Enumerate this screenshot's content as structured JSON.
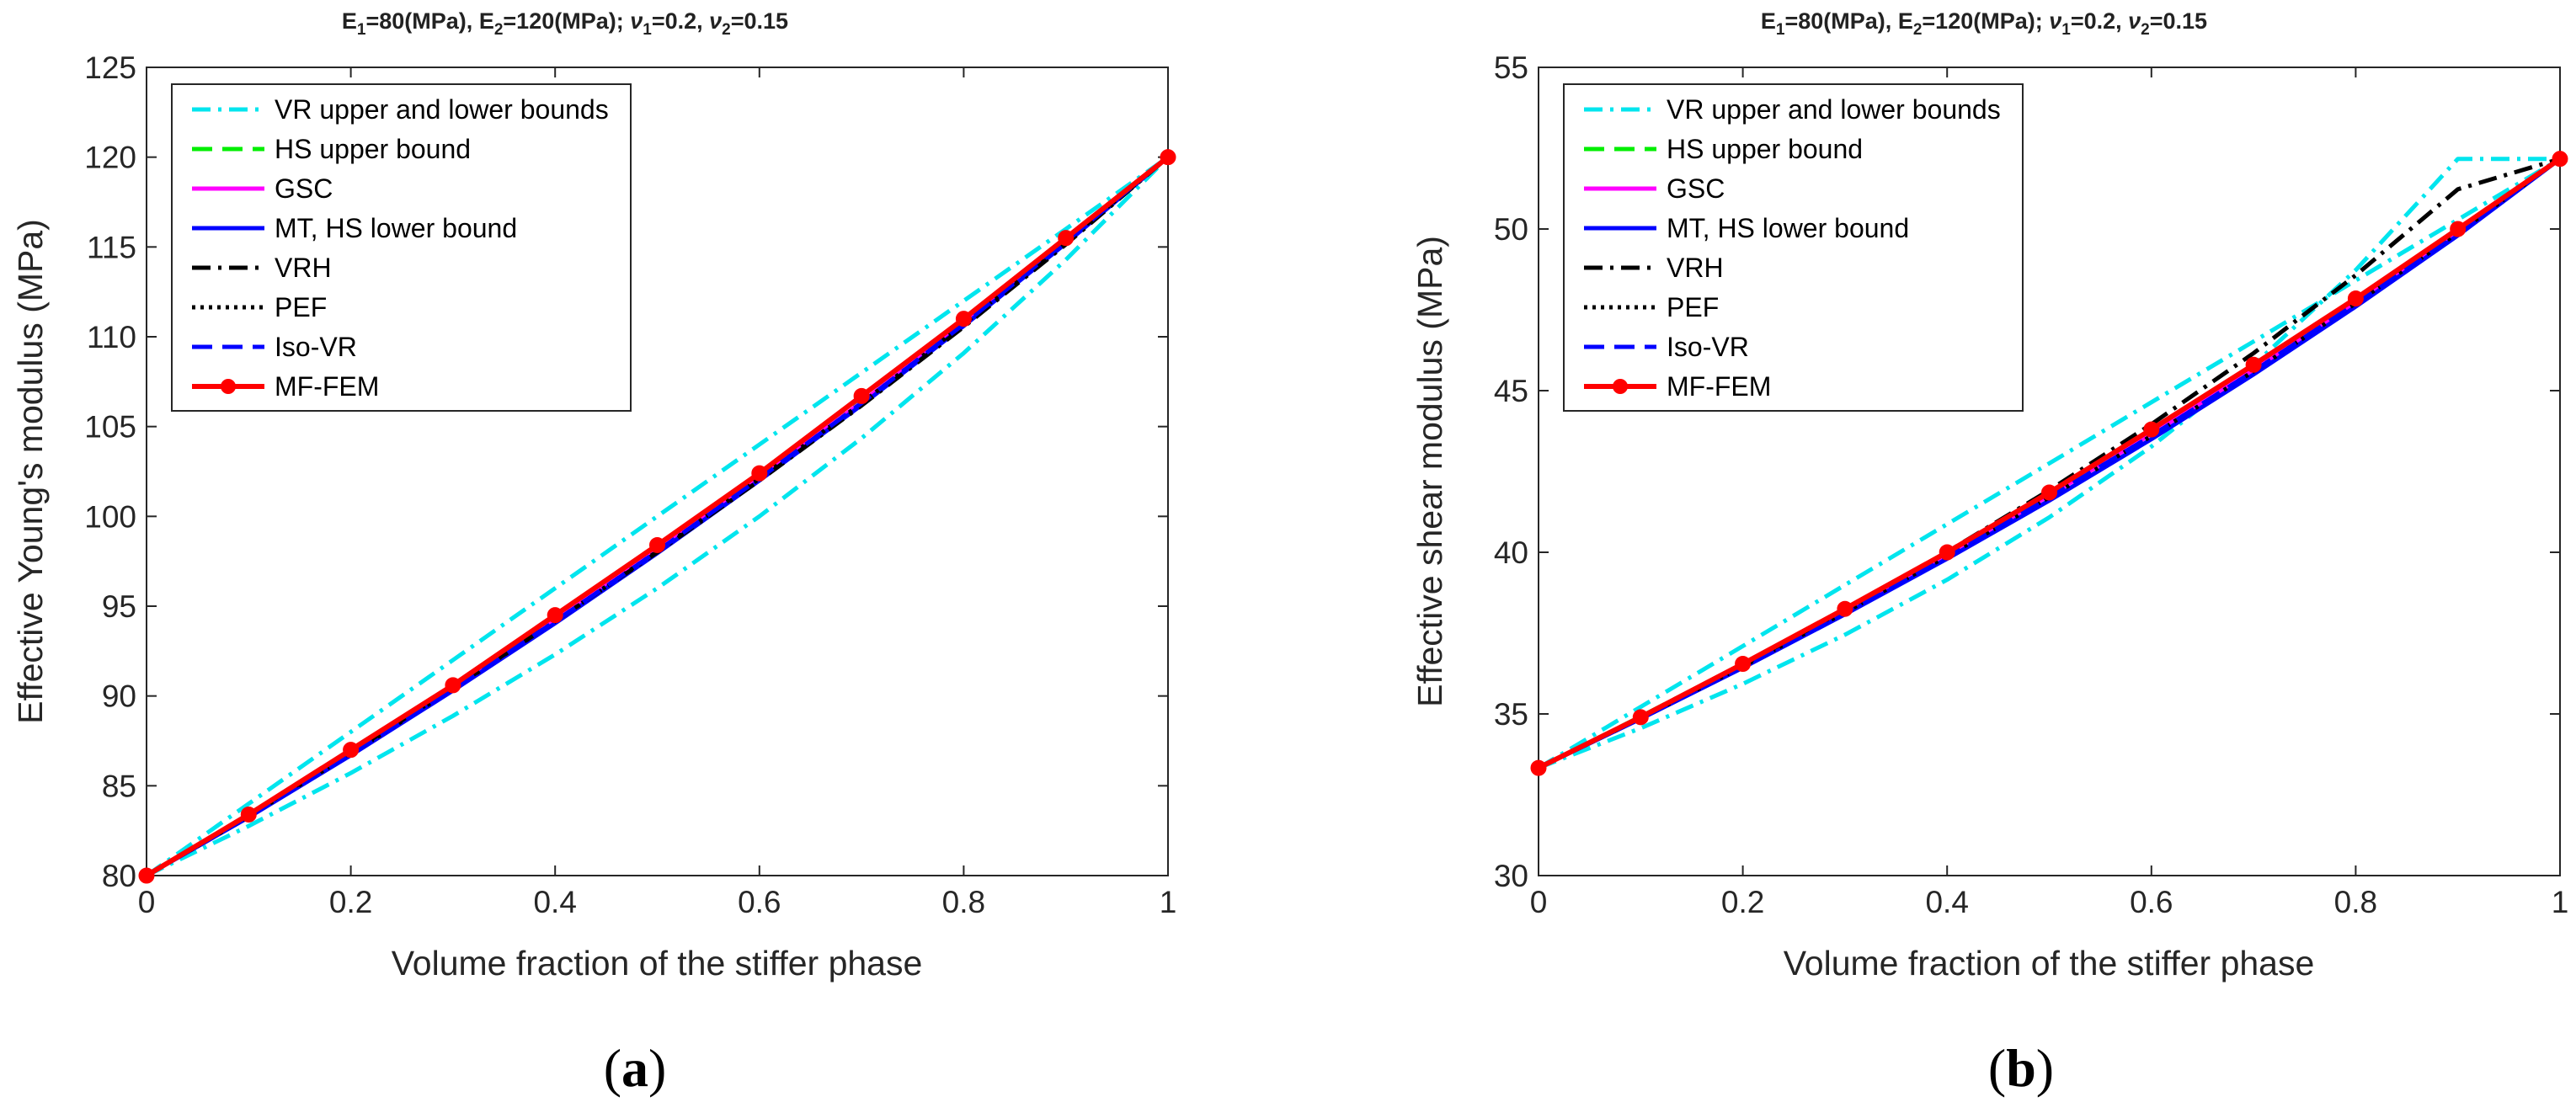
{
  "figure": {
    "captions": [
      {
        "open": "(",
        "letter": "a",
        "close": ")"
      },
      {
        "open": "(",
        "letter": "b",
        "close": ")"
      }
    ]
  },
  "legend": [
    {
      "label": "VR upper and lower bounds",
      "color": "#00e5ee",
      "style": "dashdot",
      "marker": false
    },
    {
      "label": "HS upper bound",
      "color": "#00ee00",
      "style": "dashed",
      "marker": false
    },
    {
      "label": "GSC",
      "color": "#ff00ff",
      "style": "solid",
      "marker": false
    },
    {
      "label": "MT, HS lower bound",
      "color": "#0000ff",
      "style": "solid",
      "marker": false
    },
    {
      "label": "VRH",
      "color": "#000000",
      "style": "dashdot",
      "marker": false
    },
    {
      "label": "PEF",
      "color": "#000000",
      "style": "dotted",
      "marker": false
    },
    {
      "label": "Iso-VR",
      "color": "#0000ff",
      "style": "dashed",
      "marker": false
    },
    {
      "label": "MF-FEM",
      "color": "#ff0000",
      "style": "solid",
      "marker": true
    }
  ],
  "chart_data": [
    {
      "type": "line",
      "title": {
        "E1": "E",
        "E1_sub": "1",
        "E1_val": "=80(MPa), ",
        "E2": "E",
        "E2_sub": "2",
        "E2_val": "=120(MPa); ",
        "nu1": "ν",
        "nu1_sub": "1",
        "nu1_val": "=0.2, ",
        "nu2": "ν",
        "nu2_sub": "2",
        "nu2_val": "=0.15"
      },
      "xlabel": "Volume fraction of the stiffer phase",
      "ylabel": "Effective Young's modulus (MPa)",
      "xlim": [
        0,
        1
      ],
      "ylim": [
        80,
        125
      ],
      "xticks": [
        "0",
        "0.2",
        "0.4",
        "0.6",
        "0.8",
        "1"
      ],
      "yticks": [
        "80",
        "85",
        "90",
        "95",
        "100",
        "105",
        "110",
        "115",
        "120",
        "125"
      ],
      "x": [
        0,
        0.1,
        0.2,
        0.3,
        0.4,
        0.5,
        0.6,
        0.7,
        0.8,
        0.9,
        1
      ],
      "series": [
        {
          "name": "VR upper bound",
          "values": [
            80,
            84,
            88,
            92,
            96,
            100,
            104,
            108,
            112,
            116,
            120
          ]
        },
        {
          "name": "VR lower bound",
          "values": [
            80,
            82.76,
            85.71,
            88.89,
            92.31,
            96.0,
            100.0,
            104.35,
            109.09,
            114.29,
            120
          ]
        },
        {
          "name": "HS upper bound",
          "values": [
            80,
            83.4,
            86.95,
            90.6,
            94.4,
            98.35,
            102.4,
            106.6,
            111.0,
            115.45,
            120
          ]
        },
        {
          "name": "GSC",
          "values": [
            80,
            83.3,
            86.8,
            90.45,
            94.2,
            98.1,
            102.15,
            106.35,
            110.75,
            115.3,
            120
          ]
        },
        {
          "name": "MT, HS lower bound",
          "values": [
            80,
            83.25,
            86.7,
            90.3,
            94.05,
            97.95,
            102.0,
            106.2,
            110.6,
            115.2,
            120
          ]
        },
        {
          "name": "VRH",
          "values": [
            80,
            83.38,
            86.86,
            90.44,
            94.15,
            98.0,
            102.0,
            106.17,
            110.55,
            115.14,
            120
          ]
        },
        {
          "name": "PEF",
          "values": [
            80,
            83.3,
            86.78,
            90.4,
            94.15,
            98.05,
            102.1,
            106.3,
            110.7,
            115.3,
            120
          ]
        },
        {
          "name": "Iso-VR",
          "values": [
            80,
            83.3,
            86.78,
            90.4,
            94.15,
            98.05,
            102.1,
            106.3,
            110.7,
            115.3,
            120
          ]
        },
        {
          "name": "MF-FEM",
          "values": [
            80,
            83.4,
            87.0,
            90.6,
            94.5,
            98.4,
            102.4,
            106.7,
            111.0,
            115.5,
            120
          ]
        }
      ]
    },
    {
      "type": "line",
      "title": {
        "E1": "E",
        "E1_sub": "1",
        "E1_val": "=80(MPa), ",
        "E2": "E",
        "E2_sub": "2",
        "E2_val": "=120(MPa); ",
        "nu1": "ν",
        "nu1_sub": "1",
        "nu1_val": "=0.2, ",
        "nu2": "ν",
        "nu2_sub": "2",
        "nu2_val": "=0.15"
      },
      "xlabel": "Volume fraction of the stiffer phase",
      "ylabel": "Effective shear modulus (MPa)",
      "xlim": [
        0,
        1
      ],
      "ylim": [
        30,
        55
      ],
      "xticks": [
        "0",
        "0.2",
        "0.4",
        "0.6",
        "0.8",
        "1"
      ],
      "yticks": [
        "30",
        "35",
        "40",
        "45",
        "50",
        "55"
      ],
      "x": [
        0,
        0.1,
        0.2,
        0.3,
        0.4,
        0.5,
        0.6,
        0.7,
        0.8,
        0.9,
        1
      ],
      "series": [
        {
          "name": "VR upper bound",
          "values": [
            33.33,
            35.22,
            37.1,
            38.99,
            40.87,
            42.75,
            44.64,
            46.52,
            48.41,
            50.29,
            52.17
          ]
        },
        {
          "name": "VR lower bound",
          "values": [
            33.33,
            34.56,
            35.93,
            37.45,
            39.15,
            41.08,
            43.27,
            45.79,
            48.73,
            52.17,
            52.17
          ]
        },
        {
          "name": "HS upper bound",
          "values": [
            33.33,
            34.92,
            36.55,
            38.25,
            40.0,
            41.85,
            43.75,
            45.72,
            47.8,
            49.95,
            52.17
          ]
        },
        {
          "name": "GSC",
          "values": [
            33.33,
            34.88,
            36.5,
            38.18,
            39.93,
            41.76,
            43.66,
            45.65,
            47.73,
            49.9,
            52.17
          ]
        },
        {
          "name": "MT, HS lower bound",
          "values": [
            33.33,
            34.85,
            36.43,
            38.08,
            39.8,
            41.6,
            43.5,
            45.5,
            47.6,
            49.8,
            52.17
          ]
        },
        {
          "name": "VRH",
          "values": [
            33.33,
            34.89,
            36.52,
            38.22,
            40.01,
            41.92,
            43.96,
            46.16,
            48.57,
            51.23,
            52.17
          ]
        },
        {
          "name": "PEF",
          "values": [
            33.33,
            34.87,
            36.47,
            38.14,
            39.88,
            41.7,
            43.6,
            45.6,
            47.7,
            49.88,
            52.17
          ]
        },
        {
          "name": "Iso-VR",
          "values": [
            33.33,
            34.87,
            36.47,
            38.14,
            39.88,
            41.7,
            43.6,
            45.6,
            47.7,
            49.88,
            52.17
          ]
        },
        {
          "name": "MF-FEM",
          "values": [
            33.33,
            34.9,
            36.55,
            38.25,
            40.0,
            41.85,
            43.8,
            45.8,
            47.85,
            50.0,
            52.17
          ]
        }
      ]
    }
  ]
}
